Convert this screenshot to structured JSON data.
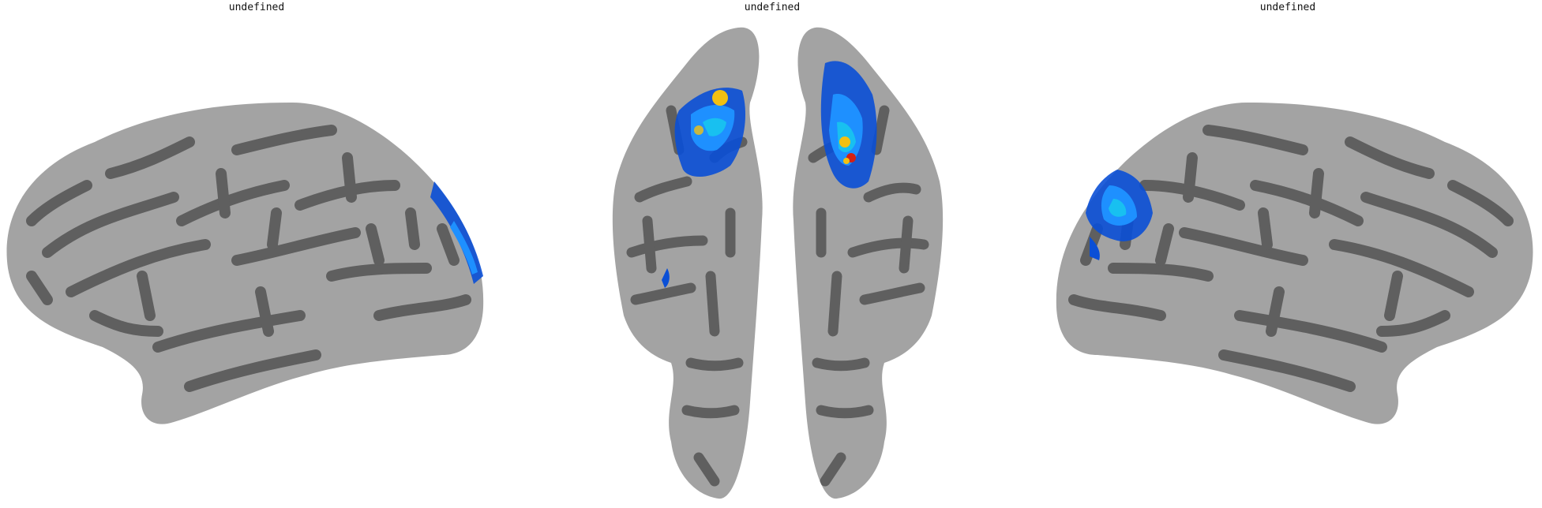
{
  "panels": [
    {
      "title": "undefined",
      "view": "lateral-left"
    },
    {
      "title": "undefined",
      "view": "dorsal"
    },
    {
      "title": "undefined",
      "view": "lateral-right"
    }
  ],
  "colors": {
    "background": "#ffffff",
    "gyri": "#a3a3a3",
    "sulci": "#5f5f5f",
    "activation_dark_blue": "#0a4fd6",
    "activation_blue": "#1e90ff",
    "activation_cyan": "#18c0f0",
    "activation_yellow": "#f2c012",
    "activation_red": "#d62012"
  },
  "icons": [
    "inflated-cortex-lateral-left",
    "inflated-cortex-dorsal",
    "inflated-cortex-lateral-right"
  ]
}
